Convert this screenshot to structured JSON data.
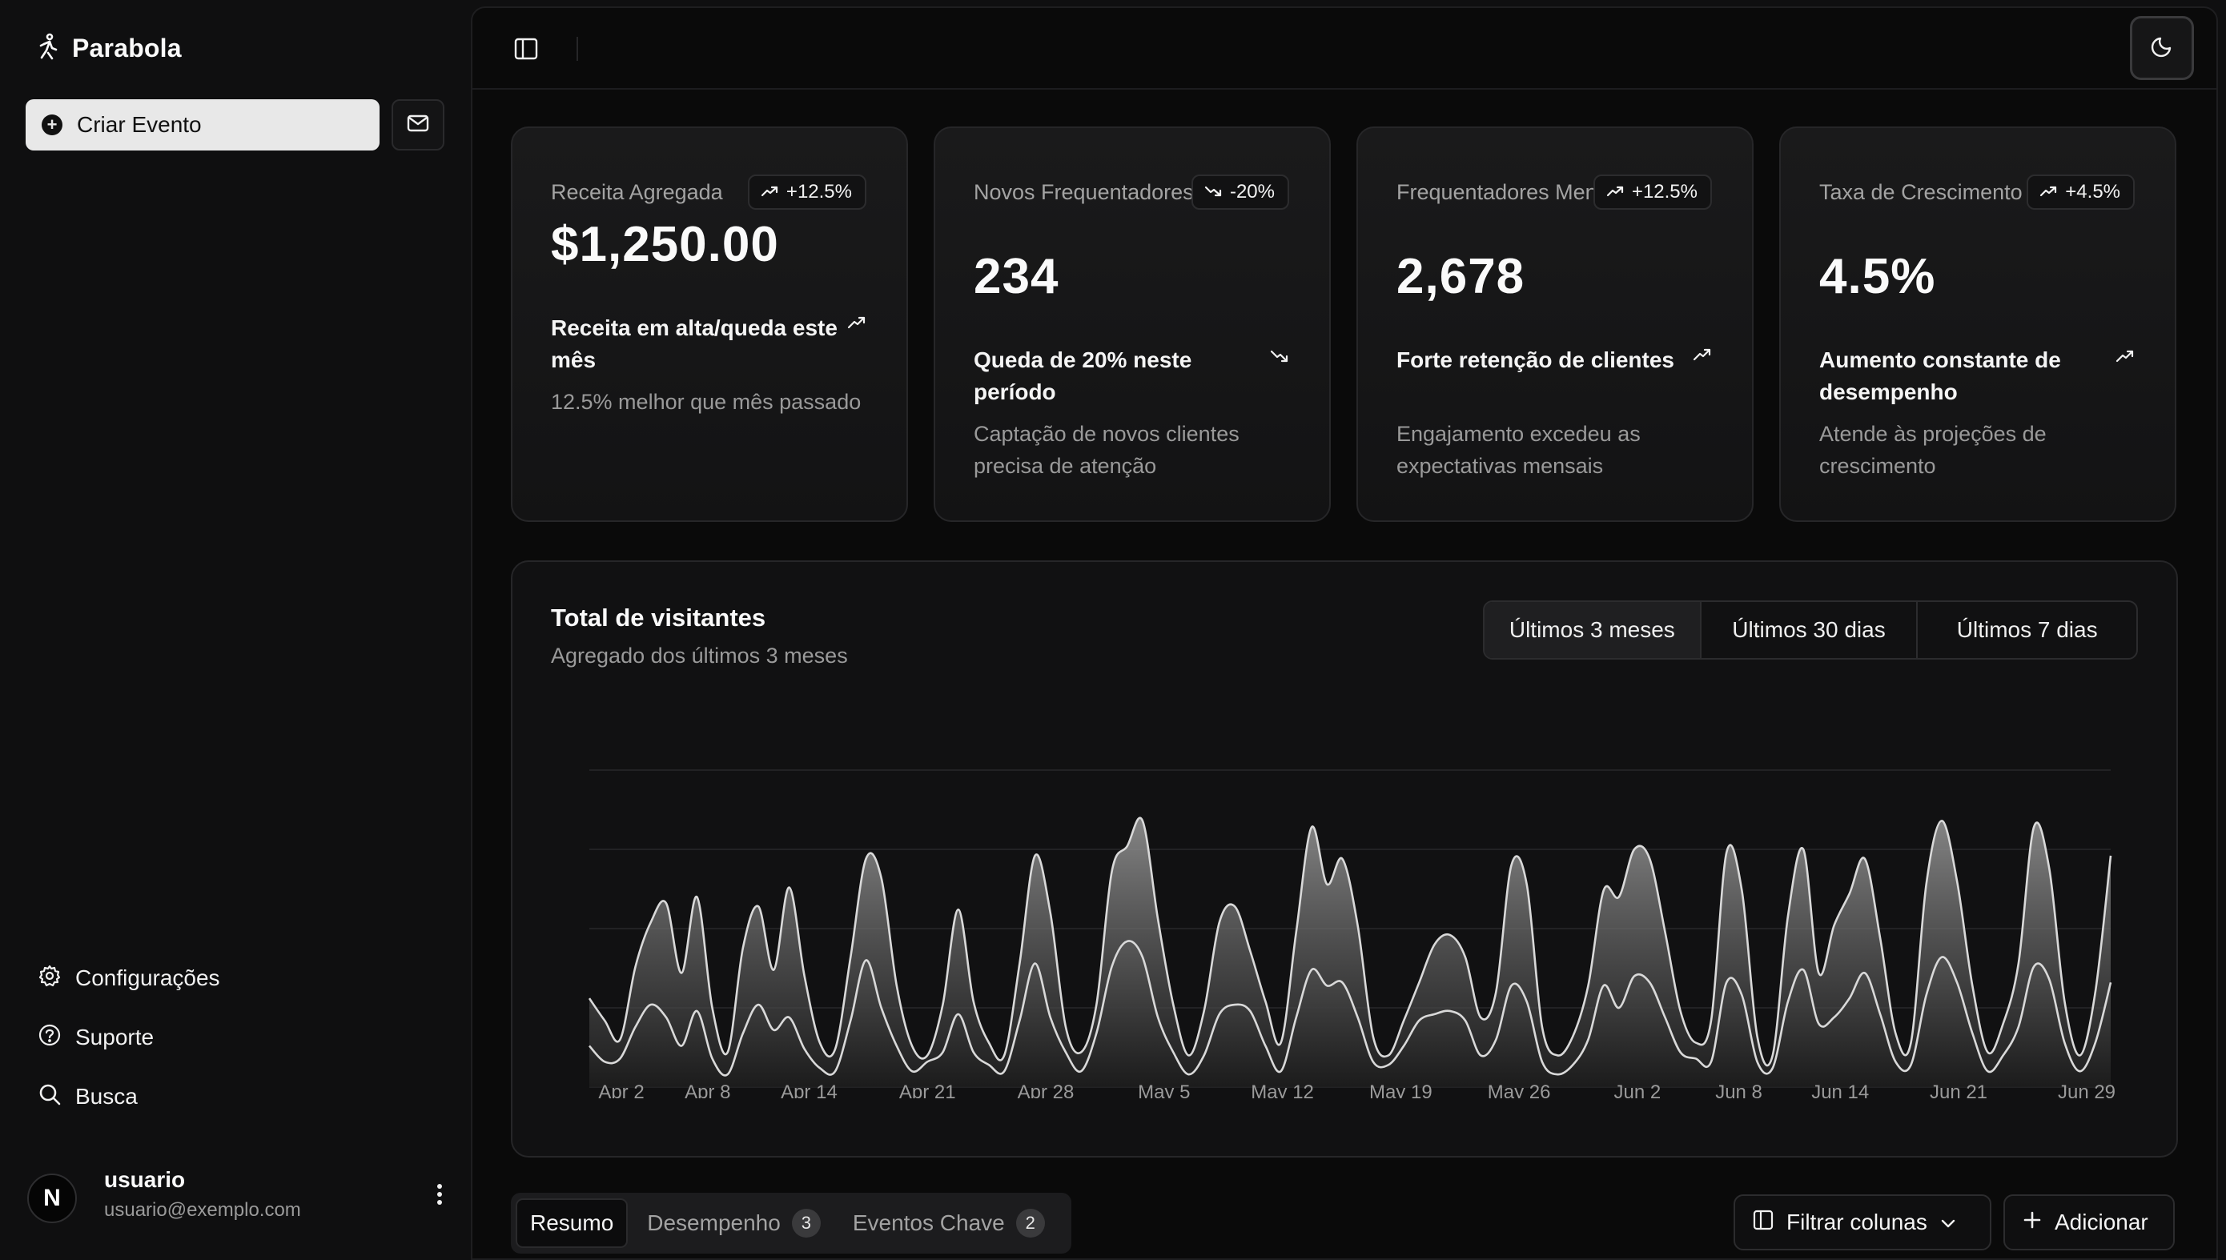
{
  "app": {
    "name": "Parabola"
  },
  "sidebar": {
    "create_label": "Criar Evento",
    "nav": [
      {
        "label": "Configurações",
        "icon": "gear-icon"
      },
      {
        "label": "Suporte",
        "icon": "help-circle-icon"
      },
      {
        "label": "Busca",
        "icon": "search-icon"
      }
    ],
    "user": {
      "initial": "N",
      "name": "usuario",
      "email": "usuario@exemplo.com"
    }
  },
  "cards": [
    {
      "label": "Receita Agregada",
      "badge": "+12.5%",
      "trend": "up",
      "value": "$1,250.00",
      "foot_title": "Receita em alta/queda este mês",
      "foot_desc": "12.5% melhor que mês passado"
    },
    {
      "label": "Novos Frequentadores",
      "badge": "-20%",
      "trend": "down",
      "value": "234",
      "foot_title": "Queda de 20% neste período",
      "foot_desc": "Captação de novos clientes precisa de atenção"
    },
    {
      "label": "Frequentadores Mensais",
      "badge": "+12.5%",
      "trend": "up",
      "value": "2,678",
      "foot_title": "Forte retenção de clientes",
      "foot_desc": "Engajamento excedeu as expectativas mensais"
    },
    {
      "label": "Taxa de Crescimento",
      "badge": "+4.5%",
      "trend": "up",
      "value": "4.5%",
      "foot_title": "Aumento constante de desempenho",
      "foot_desc": "Atende às projeções de crescimento"
    }
  ],
  "chart_section": {
    "title": "Total de visitantes",
    "subtitle": "Agregado dos últimos 3 meses",
    "ranges": [
      "Últimos 3 meses",
      "Últimos 30 dias",
      "Últimos 7 dias"
    ],
    "active_range": "Últimos 3 meses"
  },
  "chart_data": {
    "type": "area",
    "x_start": "2024-04-01",
    "x_end": "2024-06-30",
    "x_tick_labels": [
      "Apr 2",
      "Apr 8",
      "Apr 14",
      "Apr 21",
      "Apr 28",
      "May 5",
      "May 12",
      "May 19",
      "May 26",
      "Jun 2",
      "Jun 8",
      "Jun 14",
      "Jun 21",
      "Jun 29"
    ],
    "grid": true,
    "ylim": [
      0,
      100
    ],
    "series": [
      {
        "name": "",
        "values": [
          28,
          21,
          15,
          38,
          52,
          58,
          36,
          60,
          25,
          11,
          44,
          57,
          37,
          63,
          35,
          14,
          12,
          41,
          72,
          66,
          32,
          13,
          10,
          26,
          56,
          27,
          14,
          10,
          39,
          73,
          55,
          19,
          11,
          26,
          68,
          76,
          84,
          53,
          26,
          10,
          24,
          52,
          57,
          43,
          27,
          14,
          49,
          82,
          64,
          72,
          51,
          16,
          10,
          21,
          33,
          45,
          48,
          41,
          22,
          30,
          70,
          64,
          19,
          10,
          16,
          32,
          62,
          60,
          75,
          72,
          49,
          24,
          14,
          21,
          74,
          62,
          16,
          10,
          54,
          75,
          36,
          51,
          61,
          72,
          47,
          17,
          14,
          64,
          84,
          65,
          32,
          11,
          20,
          39,
          82,
          69,
          27,
          10,
          30,
          73
        ]
      },
      {
        "name": "",
        "values": [
          13,
          8,
          9,
          19,
          26,
          22,
          13,
          24,
          9,
          4,
          17,
          26,
          18,
          22,
          12,
          6,
          5,
          21,
          40,
          25,
          13,
          5,
          8,
          11,
          23,
          11,
          7,
          5,
          21,
          39,
          22,
          11,
          5,
          17,
          38,
          46,
          41,
          22,
          11,
          4,
          10,
          23,
          26,
          24,
          13,
          5,
          22,
          37,
          32,
          33,
          22,
          8,
          7,
          13,
          21,
          23,
          24,
          21,
          10,
          15,
          32,
          27,
          8,
          4,
          7,
          15,
          32,
          25,
          35,
          33,
          22,
          11,
          9,
          8,
          33,
          29,
          8,
          6,
          27,
          37,
          20,
          22,
          28,
          36,
          23,
          8,
          7,
          29,
          41,
          33,
          17,
          5,
          10,
          19,
          38,
          34,
          14,
          5,
          14,
          33
        ]
      }
    ]
  },
  "table_tabs": [
    {
      "label": "Resumo",
      "count": ""
    },
    {
      "label": "Desempenho",
      "count": "3"
    },
    {
      "label": "Eventos Chave",
      "count": "2"
    }
  ],
  "actions": {
    "filter_label": "Filtrar colunas",
    "add_label": "Adicionar"
  }
}
